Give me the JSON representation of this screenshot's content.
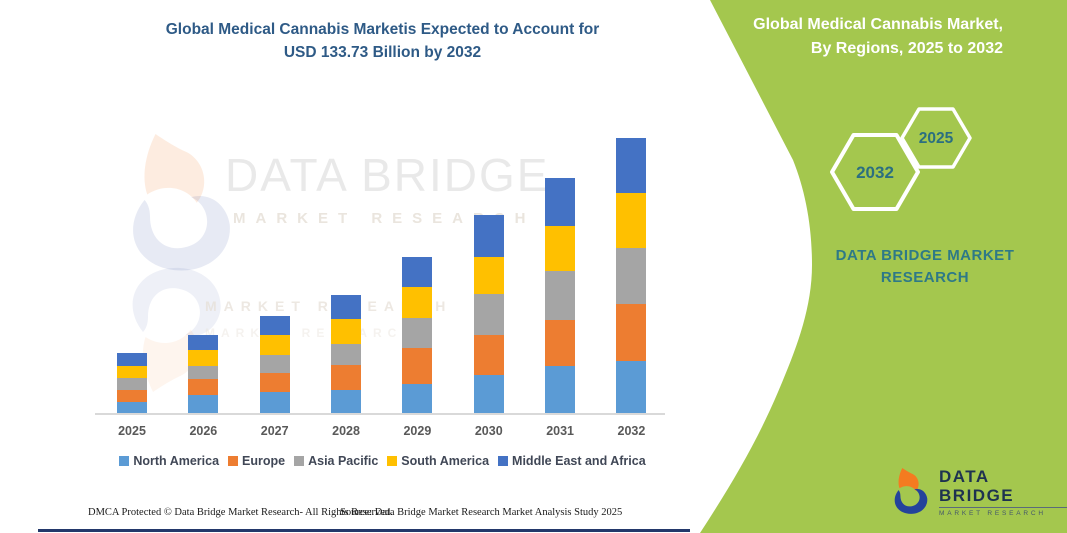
{
  "title": {
    "line1": "Global Medical Cannabis Marketis Expected to Account for",
    "line2": "USD 133.73 Billion by 2032"
  },
  "side_panel": {
    "panel_color": "#a4c74e",
    "heading_line1": "Global Medical Cannabis Market,",
    "heading_line2": "By Regions, 2025 to 2032",
    "hexagons": [
      {
        "label": "2032"
      },
      {
        "label": "2025"
      }
    ],
    "brand_line1": "DATA BRIDGE MARKET",
    "brand_line2": "RESEARCH"
  },
  "logo": {
    "name": "DATA BRIDGE",
    "subtitle": "MARKET RESEARCH"
  },
  "watermark": {
    "line1": "DATA BRIDGE",
    "line2": "MARKET RESEARCH",
    "ghost1": "MARKET RESEARCH",
    "ghost2": "MARKET RESEARCH"
  },
  "footer": {
    "left": "DMCA Protected © Data Bridge Market Research-  All Rights Reserved.",
    "right": "Source: Data Bridge Market Research  Market Analysis Study 2025"
  },
  "chart_data": {
    "type": "bar",
    "stacked": true,
    "unit": "USD Billion",
    "title": "Global Medical Cannabis Marketis Expected to Account for USD 133.73 Billion by 2032",
    "xlabel": "",
    "ylabel": "",
    "gridlines": false,
    "y_axis_visible": false,
    "legend_position": "bottom",
    "categories": [
      "2025",
      "2026",
      "2027",
      "2028",
      "2029",
      "2030",
      "2031",
      "2032"
    ],
    "series": [
      {
        "name": "North America",
        "color": "#5B9BD5",
        "values": [
          5.5,
          8.6,
          10.2,
          11.3,
          14.3,
          18.6,
          22.7,
          25.4
        ]
      },
      {
        "name": "Europe",
        "color": "#ED7D31",
        "values": [
          5.8,
          7.8,
          9.2,
          11.8,
          17.4,
          19.5,
          22.7,
          27.7
        ]
      },
      {
        "name": "Asia Pacific",
        "color": "#A5A5A5",
        "values": [
          5.5,
          6.5,
          8.9,
          10.6,
          14.3,
          19.5,
          23.5,
          27.1
        ]
      },
      {
        "name": "South America",
        "color": "#FFC000",
        "values": [
          6.2,
          7.6,
          9.7,
          12.2,
          15.4,
          18.3,
          22.2,
          26.7
        ]
      },
      {
        "name": "Middle East and Africa",
        "color": "#4472C4",
        "values": [
          6.2,
          7.3,
          8.9,
          11.3,
          14.6,
          20.3,
          23.2,
          26.7
        ]
      }
    ],
    "totals_estimated": [
      29.2,
      37.8,
      46.9,
      57.2,
      76.0,
      96.2,
      114.3,
      133.73
    ]
  }
}
